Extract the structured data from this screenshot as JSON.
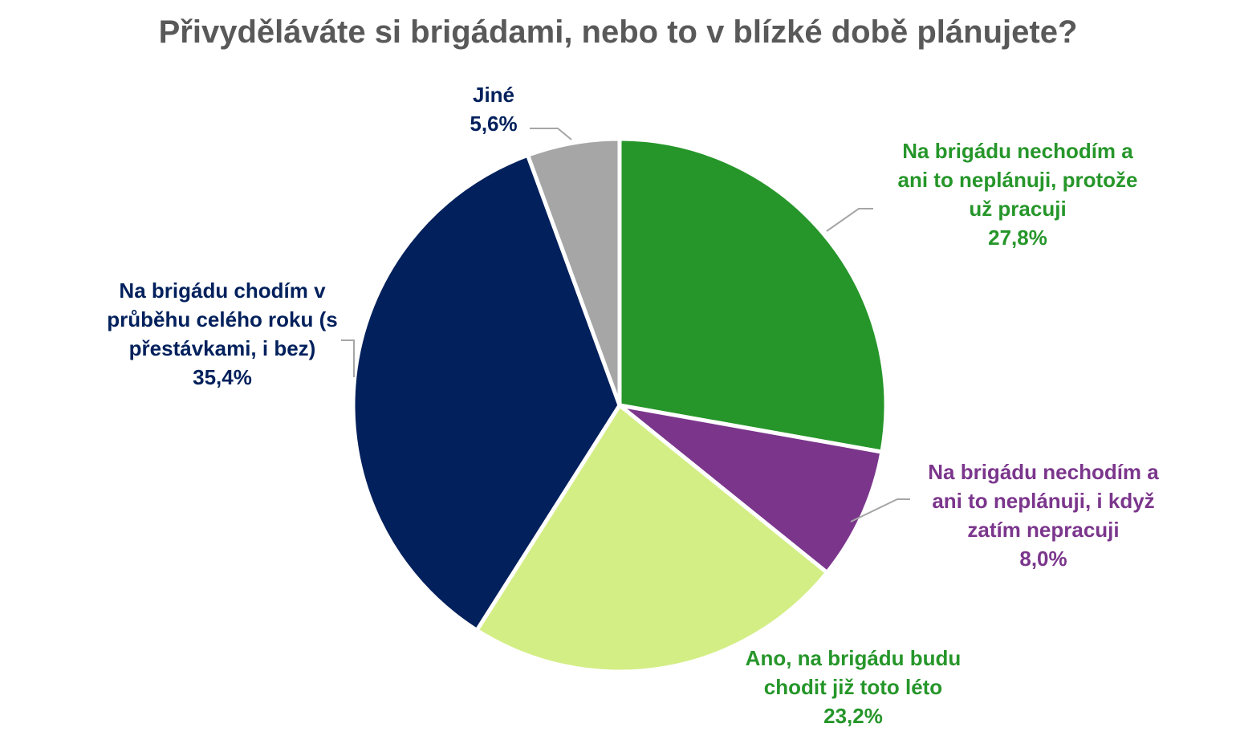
{
  "chart_data": {
    "type": "pie",
    "title": "Přivyděláváte si brigádami, nebo to v blízké době plánujete?",
    "slices": [
      {
        "label_lines": [
          "Na brigádu nechodím a",
          "ani to neplánuji, protože",
          "už pracuji"
        ],
        "value": 27.8,
        "value_label": "27,8%",
        "color": "#26962a",
        "label_color": "#26962a"
      },
      {
        "label_lines": [
          "Na brigádu nechodím a",
          "ani to neplánuji, i když",
          "zatím nepracuji"
        ],
        "value": 8.0,
        "value_label": "8,0%",
        "color": "#7b368c",
        "label_color": "#7b368c"
      },
      {
        "label_lines": [
          "Ano, na brigádu budu",
          "chodit již toto léto"
        ],
        "value": 23.2,
        "value_label": "23,2%",
        "color": "#d4ee86",
        "label_color": "#26962a"
      },
      {
        "label_lines": [
          "Na brigádu chodím v",
          "průběhu celého roku (s",
          "přestávkami, i bez)"
        ],
        "value": 35.4,
        "value_label": "35,4%",
        "color": "#02205c",
        "label_color": "#02205c"
      },
      {
        "label_lines": [
          "Jiné"
        ],
        "value": 5.6,
        "value_label": "5,6%",
        "color": "#a6a6a6",
        "label_color": "#02205c"
      }
    ],
    "leader_line_color": "#a6a6a6"
  }
}
